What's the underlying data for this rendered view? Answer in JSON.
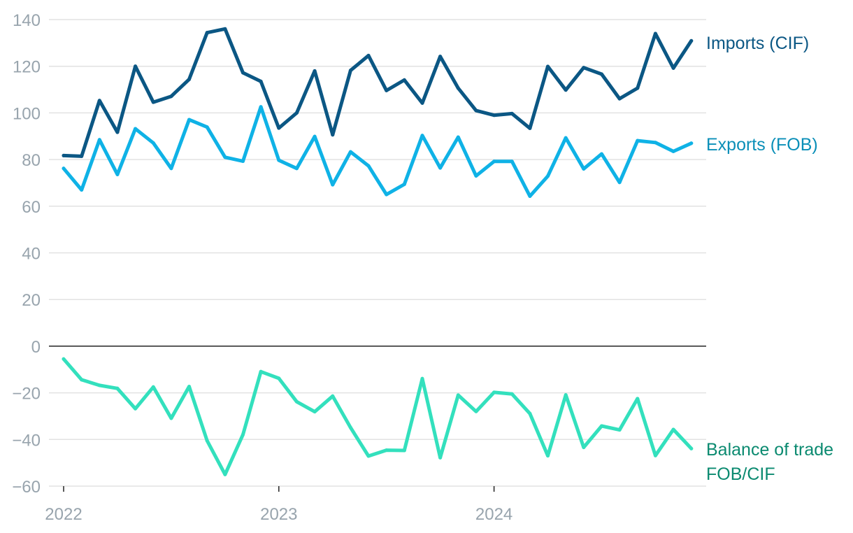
{
  "chart_data": {
    "type": "line",
    "title": "",
    "xlabel": "",
    "ylabel": "",
    "ylim": [
      -60,
      140
    ],
    "yticks": [
      140,
      120,
      100,
      80,
      60,
      40,
      20,
      0,
      -20,
      -40,
      -60
    ],
    "ytick_labels": [
      "140",
      "120",
      "100",
      "80",
      "60",
      "40",
      "20",
      "0",
      "−20",
      "−40",
      "−60"
    ],
    "xticks": [
      "2022",
      "2023",
      "2024"
    ],
    "grid": true,
    "legend": "labels at line ends (right)",
    "x": [
      "2022-01",
      "2022-02",
      "2022-03",
      "2022-04",
      "2022-05",
      "2022-06",
      "2022-07",
      "2022-08",
      "2022-09",
      "2022-10",
      "2022-11",
      "2022-12",
      "2023-01",
      "2023-02",
      "2023-03",
      "2023-04",
      "2023-05",
      "2023-06",
      "2023-07",
      "2023-08",
      "2023-09",
      "2023-10",
      "2023-11",
      "2023-12",
      "2024-01",
      "2024-02",
      "2024-03",
      "2024-04",
      "2024-05",
      "2024-06",
      "2024-07",
      "2024-08",
      "2024-09",
      "2024-10",
      "2024-11",
      "2024-12"
    ],
    "series": [
      {
        "name": "Imports (CIF)",
        "color": "#0b5784",
        "values": [
          81.7,
          81.4,
          105.3,
          91.7,
          120.0,
          104.6,
          107.1,
          114.4,
          134.4,
          136.0,
          117.2,
          113.5,
          93.5,
          100.0,
          118.0,
          90.6,
          118.2,
          124.6,
          109.6,
          114.1,
          104.2,
          124.2,
          110.6,
          101.0,
          99.0,
          99.7,
          93.4,
          119.9,
          109.8,
          119.4,
          116.6,
          106.1,
          110.6,
          134.0,
          119.2,
          130.9
        ]
      },
      {
        "name": "Exports (FOB)",
        "color": "#0fb2e6",
        "values": [
          76.2,
          67.0,
          88.5,
          73.6,
          93.2,
          87.1,
          76.2,
          97.1,
          93.9,
          81.0,
          79.3,
          102.6,
          79.7,
          76.2,
          89.9,
          69.2,
          83.3,
          77.3,
          65.0,
          69.4,
          90.3,
          76.4,
          89.6,
          73.0,
          79.2,
          79.2,
          64.3,
          72.9,
          89.3,
          76.0,
          82.4,
          70.2,
          88.1,
          87.3,
          83.5,
          87.0
        ]
      },
      {
        "name": "Balance of trade FOB/CIF",
        "color": "#33e0bd",
        "values": [
          -5.5,
          -14.4,
          -16.8,
          -18.1,
          -26.8,
          -17.5,
          -30.9,
          -17.3,
          -40.5,
          -55.0,
          -37.9,
          -10.9,
          -13.8,
          -23.8,
          -28.1,
          -21.4,
          -34.9,
          -47.1,
          -44.6,
          -44.7,
          -13.9,
          -47.8,
          -21.0,
          -28.0,
          -19.8,
          -20.5,
          -28.9,
          -47.0,
          -20.9,
          -43.4,
          -34.2,
          -35.9,
          -22.5,
          -46.9,
          -35.7,
          -43.9
        ]
      }
    ],
    "labels": {
      "imports": [
        "Imports (CIF)"
      ],
      "exports": [
        "Exports (FOB)"
      ],
      "balance": [
        "Balance of trade",
        "FOB/CIF"
      ]
    },
    "label_colors": {
      "imports": "#0b5784",
      "exports": "#0b8fb8",
      "balance": "#0b8a70"
    }
  }
}
